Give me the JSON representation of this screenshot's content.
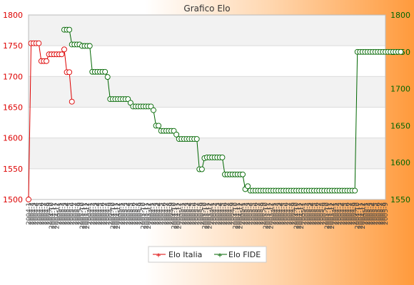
{
  "chart_data": {
    "type": "line",
    "title": "Grafico Elo",
    "left_axis": {
      "ylim": [
        1500,
        1800
      ],
      "ticks": [
        1500,
        1550,
        1600,
        1650,
        1700,
        1750,
        1800
      ],
      "color": "#dd0000"
    },
    "right_axis": {
      "ylim": [
        1550,
        1800
      ],
      "ticks": [
        1550,
        1600,
        1650,
        1700,
        1750,
        1800
      ],
      "color": "#006600"
    },
    "grid": true,
    "legend_position": "bottom-center",
    "x_count": 141,
    "x_tick_texts": [
      "2004-1",
      "2004-2",
      "2004-3",
      "2004-4",
      "2004-5",
      "2004-6",
      "2004-7",
      "2004-8",
      "2004-9",
      "2004-10",
      "2004-11",
      "2004-12",
      "2005-1",
      "2005-2",
      "2005-3",
      "2005-4",
      "2005-5",
      "2005-6",
      "2005-7",
      "2005-8",
      "2005-9",
      "2005-10",
      "2005-11",
      "2005-12"
    ],
    "series": [
      {
        "name": "Elo Italia",
        "axis": "left",
        "color": "#dd0000",
        "values": [
          1500,
          1754,
          1754,
          1754,
          1754,
          1725,
          1725,
          1725,
          1736,
          1736,
          1736,
          1736,
          1736,
          1736,
          1744,
          1707,
          1707,
          1659
        ]
      },
      {
        "name": "Elo FIDE",
        "axis": "right",
        "color": "#006600",
        "start_index": 14,
        "values": [
          1780,
          1780,
          1780,
          1760,
          1760,
          1760,
          1760,
          1758,
          1758,
          1758,
          1758,
          1723,
          1723,
          1723,
          1723,
          1723,
          1723,
          1716,
          1686,
          1686,
          1686,
          1686,
          1686,
          1686,
          1686,
          1686,
          1681,
          1676,
          1676,
          1676,
          1676,
          1676,
          1676,
          1676,
          1676,
          1671,
          1650,
          1650,
          1643,
          1643,
          1643,
          1643,
          1643,
          1643,
          1638,
          1632,
          1632,
          1632,
          1632,
          1632,
          1632,
          1632,
          1632,
          1591,
          1591,
          1606,
          1607,
          1607,
          1607,
          1607,
          1607,
          1607,
          1607,
          1584,
          1584,
          1584,
          1584,
          1584,
          1584,
          1584,
          1584,
          1564,
          1568,
          1562,
          1562,
          1562,
          1562,
          1562,
          1562,
          1562,
          1562,
          1562,
          1562,
          1562,
          1562,
          1562,
          1562,
          1562,
          1562,
          1562,
          1562,
          1562,
          1562,
          1562,
          1562,
          1562,
          1562,
          1562,
          1562,
          1562,
          1562,
          1562,
          1562,
          1562,
          1562,
          1562,
          1562,
          1562,
          1562,
          1562,
          1562,
          1562,
          1562,
          1562,
          1562,
          1750,
          1750,
          1750,
          1750,
          1750,
          1750,
          1750,
          1750,
          1750,
          1750,
          1750,
          1750,
          1750,
          1750,
          1750,
          1750,
          1750,
          1750
        ]
      }
    ]
  }
}
